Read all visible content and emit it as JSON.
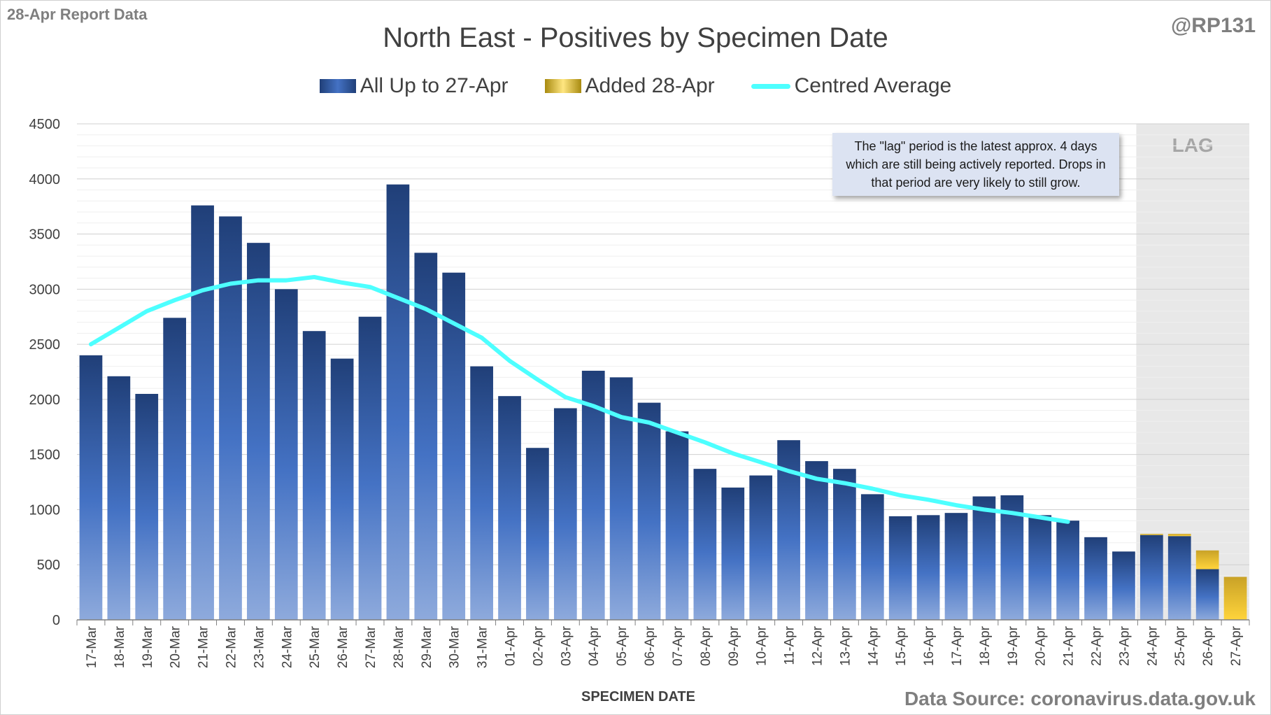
{
  "report_label": "28-Apr Report Data",
  "handle": "@RP131",
  "source_note": "Data Source: coronavirus.data.gov.uk",
  "annotation": "The \"lag\" period is the latest approx. 4 days which are still being actively reported. Drops in that period are very likely to still grow.",
  "colors": {
    "base_dark": "#203f78",
    "base_mid": "#4472c4",
    "base_light": "#8eaadc",
    "added": "#c9a227",
    "added_light": "#ffe680",
    "average": "#4dffff",
    "lag_shade": "#e8e8e8",
    "grid": "#d9d9d9"
  },
  "chart_data": {
    "type": "bar",
    "title": "North East - Positives by Specimen Date",
    "xlabel": "SPECIMEN DATE",
    "ylabel": "",
    "ylim": [
      0,
      4500
    ],
    "yticks": [
      0,
      500,
      1000,
      1500,
      2000,
      2500,
      3000,
      3500,
      4000,
      4500
    ],
    "stacked": true,
    "categories": [
      "17-Mar",
      "18-Mar",
      "19-Mar",
      "20-Mar",
      "21-Mar",
      "22-Mar",
      "23-Mar",
      "24-Mar",
      "25-Mar",
      "26-Mar",
      "27-Mar",
      "28-Mar",
      "29-Mar",
      "30-Mar",
      "31-Mar",
      "01-Apr",
      "02-Apr",
      "03-Apr",
      "04-Apr",
      "05-Apr",
      "06-Apr",
      "07-Apr",
      "08-Apr",
      "09-Apr",
      "10-Apr",
      "11-Apr",
      "12-Apr",
      "13-Apr",
      "14-Apr",
      "15-Apr",
      "16-Apr",
      "17-Apr",
      "18-Apr",
      "19-Apr",
      "20-Apr",
      "21-Apr",
      "22-Apr",
      "23-Apr",
      "24-Apr",
      "25-Apr",
      "26-Apr",
      "27-Apr"
    ],
    "series": [
      {
        "name": "All Up to 27-Apr",
        "kind": "bar",
        "values": [
          2400,
          2210,
          2050,
          2740,
          3760,
          3660,
          3420,
          3000,
          2620,
          2370,
          2750,
          3950,
          3330,
          3150,
          2300,
          2030,
          1560,
          1920,
          2260,
          2200,
          1970,
          1710,
          1370,
          1200,
          1310,
          1630,
          1440,
          1370,
          1140,
          940,
          950,
          970,
          1120,
          1130,
          950,
          900,
          750,
          620,
          770,
          760,
          460,
          0
        ]
      },
      {
        "name": "Added 28-Apr",
        "kind": "bar",
        "values": [
          0,
          0,
          0,
          0,
          0,
          0,
          0,
          0,
          0,
          0,
          0,
          0,
          0,
          0,
          0,
          0,
          0,
          0,
          0,
          0,
          0,
          0,
          0,
          0,
          0,
          0,
          0,
          0,
          0,
          0,
          0,
          0,
          0,
          0,
          0,
          0,
          0,
          0,
          10,
          20,
          170,
          390
        ]
      },
      {
        "name": "Centred Average",
        "kind": "line",
        "values": [
          2500,
          2650,
          2800,
          2900,
          2990,
          3050,
          3080,
          3080,
          3110,
          3060,
          3020,
          2920,
          2820,
          2690,
          2560,
          2350,
          2180,
          2020,
          1940,
          1840,
          1790,
          1700,
          1610,
          1510,
          1430,
          1350,
          1280,
          1240,
          1190,
          1130,
          1090,
          1040,
          1000,
          970,
          930,
          890,
          null,
          null,
          null,
          null,
          null,
          null
        ]
      }
    ],
    "lag": {
      "label": "LAG",
      "from": "24-Apr",
      "to": "27-Apr"
    },
    "legend_position": "top",
    "grid": true
  }
}
